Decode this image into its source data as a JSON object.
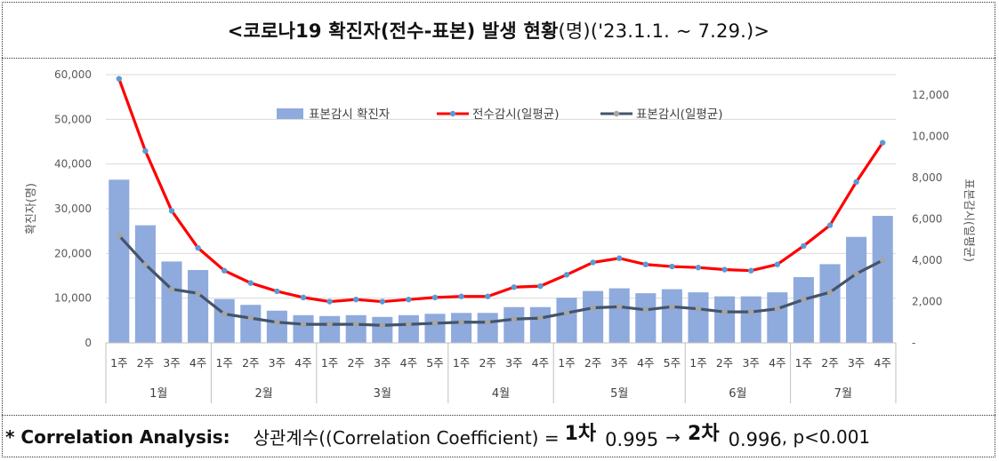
{
  "header": {
    "title_main": "<코로나19 확진자(전수-표본) 발생 현황",
    "title_sub": "(명)('23.1.1. ~ 7.29.)>"
  },
  "chart_data": {
    "type": "bar+line",
    "categories": [
      "1주",
      "2주",
      "3주",
      "4주",
      "1주",
      "2주",
      "3주",
      "4주",
      "1주",
      "2주",
      "3주",
      "4주",
      "5주",
      "1주",
      "2주",
      "3주",
      "4주",
      "1주",
      "2주",
      "3주",
      "4주",
      "5주",
      "1주",
      "2주",
      "3주",
      "4주",
      "1주",
      "2주",
      "3주",
      "4주"
    ],
    "months": [
      {
        "label": "1월",
        "weeks": 4
      },
      {
        "label": "2월",
        "weeks": 4
      },
      {
        "label": "3월",
        "weeks": 5
      },
      {
        "label": "4월",
        "weeks": 4
      },
      {
        "label": "5월",
        "weeks": 5
      },
      {
        "label": "6월",
        "weeks": 4
      },
      {
        "label": "7월",
        "weeks": 4
      }
    ],
    "series": [
      {
        "name": "표본감시 확진자",
        "type": "bar",
        "axis": "left",
        "color": "#8faadc",
        "values": [
          36500,
          26300,
          18200,
          16300,
          9800,
          8500,
          7200,
          6200,
          6000,
          6200,
          5800,
          6200,
          6500,
          6700,
          6700,
          8000,
          8000,
          10100,
          11600,
          12200,
          11100,
          12000,
          11300,
          10400,
          10400,
          11300,
          14700,
          17600,
          23700,
          28400
        ]
      },
      {
        "name": "전수감시(일평균)",
        "type": "line",
        "axis": "right",
        "color": "#ff0000",
        "values": [
          12800,
          9300,
          6400,
          4600,
          3500,
          2900,
          2500,
          2200,
          2000,
          2100,
          2000,
          2100,
          2200,
          2250,
          2250,
          2700,
          2750,
          3300,
          3900,
          4100,
          3800,
          3700,
          3650,
          3550,
          3500,
          3800,
          4700,
          5700,
          7800,
          9700
        ]
      },
      {
        "name": "표본감시(일평균)",
        "type": "line",
        "axis": "right",
        "color": "#44546a",
        "values": [
          5200,
          3800,
          2600,
          2400,
          1400,
          1200,
          1000,
          900,
          900,
          900,
          850,
          900,
          950,
          1000,
          1000,
          1150,
          1200,
          1450,
          1700,
          1750,
          1600,
          1750,
          1650,
          1500,
          1500,
          1650,
          2100,
          2450,
          3350,
          4000
        ]
      }
    ],
    "left_axis": {
      "label": "확진자(명)",
      "min": 0,
      "max": 60000,
      "ticks": [
        "0",
        "10,000",
        "20,000",
        "30,000",
        "40,000",
        "50,000",
        "60,000"
      ]
    },
    "right_axis": {
      "label": "표본감시(일평균)",
      "min": 0,
      "max": 13000,
      "ticks": [
        "-",
        "2,000",
        "4,000",
        "6,000",
        "8,000",
        "10,000",
        "12,000"
      ]
    },
    "legend_position": "top-center",
    "grid": true
  },
  "footer": {
    "prefix": "* Correlation Analysis:",
    "label": "상관계수((Correlation Coefficient) =",
    "first": "1차",
    "first_val": "0.995",
    "arrow": "→",
    "second": "2차",
    "second_val": "0.996",
    "p_value": ", p<0.001"
  }
}
